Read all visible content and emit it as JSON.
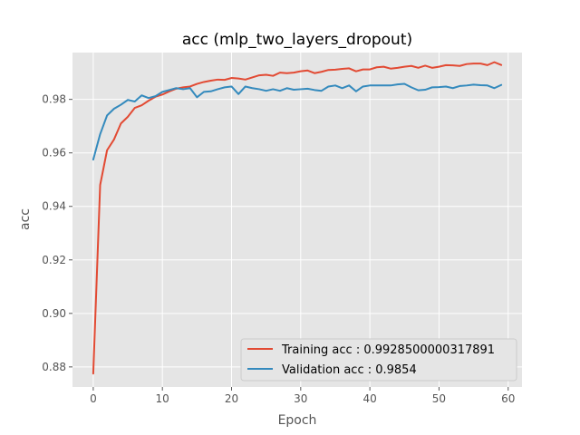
{
  "chart_data": {
    "type": "line",
    "title": "acc (mlp_two_layers_dropout)",
    "xlabel": "Epoch",
    "ylabel": "acc",
    "xlim": [
      -3,
      62
    ],
    "ylim": [
      0.8725,
      0.9975
    ],
    "xticks": [
      0,
      10,
      20,
      30,
      40,
      50,
      60
    ],
    "yticks": [
      0.88,
      0.9,
      0.92,
      0.94,
      0.96,
      0.98
    ],
    "grid": true,
    "legend_position": "lower-right",
    "series": [
      {
        "name": "Training acc : 0.9928500000317891",
        "color": "#e24a33",
        "x": [
          0,
          1,
          2,
          3,
          4,
          5,
          6,
          7,
          8,
          9,
          10,
          11,
          12,
          13,
          14,
          15,
          16,
          17,
          18,
          19,
          20,
          21,
          22,
          23,
          24,
          25,
          26,
          27,
          28,
          29,
          30,
          31,
          32,
          33,
          34,
          35,
          36,
          37,
          38,
          39,
          40,
          41,
          42,
          43,
          44,
          45,
          46,
          47,
          48,
          49,
          50,
          51,
          52,
          53,
          54,
          55,
          56,
          57,
          58,
          59
        ],
        "values": [
          0.8775,
          0.948,
          0.961,
          0.965,
          0.971,
          0.9735,
          0.9768,
          0.9778,
          0.9795,
          0.981,
          0.9818,
          0.983,
          0.984,
          0.9845,
          0.9848,
          0.9858,
          0.9865,
          0.987,
          0.9874,
          0.9873,
          0.988,
          0.9878,
          0.9874,
          0.9882,
          0.989,
          0.9892,
          0.9888,
          0.99,
          0.9898,
          0.99,
          0.9905,
          0.9908,
          0.9898,
          0.9903,
          0.991,
          0.9911,
          0.9914,
          0.9916,
          0.9905,
          0.9912,
          0.9912,
          0.992,
          0.9922,
          0.9915,
          0.9918,
          0.9922,
          0.9925,
          0.9918,
          0.9926,
          0.9918,
          0.9922,
          0.9928,
          0.9927,
          0.9925,
          0.9932,
          0.9934,
          0.9934,
          0.9928,
          0.9939,
          0.99285
        ]
      },
      {
        "name": "Validation acc : 0.9854",
        "color": "#348abd",
        "x": [
          0,
          1,
          2,
          3,
          4,
          5,
          6,
          7,
          8,
          9,
          10,
          11,
          12,
          13,
          14,
          15,
          16,
          17,
          18,
          19,
          20,
          21,
          22,
          23,
          24,
          25,
          26,
          27,
          28,
          29,
          30,
          31,
          32,
          33,
          34,
          35,
          36,
          37,
          38,
          39,
          40,
          41,
          42,
          43,
          44,
          45,
          46,
          47,
          48,
          49,
          50,
          51,
          52,
          53,
          54,
          55,
          56,
          57,
          58,
          59
        ],
        "values": [
          0.9575,
          0.967,
          0.974,
          0.9765,
          0.978,
          0.9798,
          0.9792,
          0.9815,
          0.9805,
          0.9812,
          0.9828,
          0.9835,
          0.9842,
          0.9838,
          0.9842,
          0.9808,
          0.9828,
          0.983,
          0.9838,
          0.9845,
          0.9848,
          0.982,
          0.9848,
          0.9842,
          0.9838,
          0.9832,
          0.9838,
          0.9832,
          0.9842,
          0.9836,
          0.9838,
          0.984,
          0.9835,
          0.9832,
          0.9848,
          0.9852,
          0.9842,
          0.9852,
          0.983,
          0.9848,
          0.9852,
          0.9852,
          0.9852,
          0.9852,
          0.9856,
          0.9858,
          0.9845,
          0.9834,
          0.9836,
          0.9845,
          0.9846,
          0.9848,
          0.9842,
          0.985,
          0.9852,
          0.9855,
          0.9853,
          0.9852,
          0.9842,
          0.9854
        ]
      }
    ]
  }
}
